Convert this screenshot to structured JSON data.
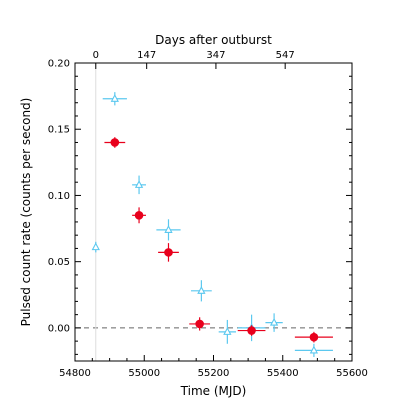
{
  "chart_data": {
    "type": "scatter",
    "title": "",
    "xlabel": "Time (MJD)",
    "ylabel": "Pulsed count rate (counts per second)",
    "top_axis_label": "Days after outburst",
    "xlim": [
      54800,
      55600
    ],
    "ylim": [
      -0.025,
      0.2
    ],
    "x_ticks": [
      54800,
      55000,
      55200,
      55400,
      55600
    ],
    "x_tick_labels": [
      "54800",
      "55000",
      "55200",
      "55400",
      "55600"
    ],
    "y_ticks": [
      0.0,
      0.05,
      0.1,
      0.15,
      0.2
    ],
    "y_tick_labels": [
      "0.00",
      "0.05",
      "0.10",
      "0.15",
      "0.20"
    ],
    "top_ticks": [
      54860,
      55007,
      55207,
      55407
    ],
    "top_tick_labels": [
      "0",
      "147",
      "347",
      "547"
    ],
    "outburst_line_x": 54860,
    "zero_line_y": 0.0,
    "series": [
      {
        "color": "#5bc8ef",
        "marker": "triangle-open",
        "points": [
          {
            "x": 54860,
            "y": 0.061,
            "xerr": 0,
            "yerr": 0.004
          },
          {
            "x": 54915,
            "y": 0.173,
            "xerr": 35,
            "yerr": 0.005
          },
          {
            "x": 54985,
            "y": 0.108,
            "xerr": 20,
            "yerr": 0.007
          },
          {
            "x": 55070,
            "y": 0.074,
            "xerr": 35,
            "yerr": 0.008
          },
          {
            "x": 55165,
            "y": 0.028,
            "xerr": 30,
            "yerr": 0.008
          },
          {
            "x": 55240,
            "y": -0.003,
            "xerr": 25,
            "yerr": 0.009
          },
          {
            "x": 55310,
            "y": 0.0,
            "xerr": 40,
            "yerr": 0.01
          },
          {
            "x": 55375,
            "y": 0.004,
            "xerr": 25,
            "yerr": 0.007
          },
          {
            "x": 55490,
            "y": -0.017,
            "xerr": 55,
            "yerr": 0.005
          }
        ]
      },
      {
        "color": "#e8001c",
        "marker": "circle-filled",
        "points": [
          {
            "x": 54915,
            "y": 0.14,
            "xerr": 30,
            "yerr": 0.004
          },
          {
            "x": 54985,
            "y": 0.085,
            "xerr": 20,
            "yerr": 0.006
          },
          {
            "x": 55070,
            "y": 0.057,
            "xerr": 30,
            "yerr": 0.007
          },
          {
            "x": 55160,
            "y": 0.003,
            "xerr": 30,
            "yerr": 0.005
          },
          {
            "x": 55310,
            "y": -0.002,
            "xerr": 40,
            "yerr": 0.004
          },
          {
            "x": 55490,
            "y": -0.007,
            "xerr": 55,
            "yerr": 0.004
          }
        ]
      }
    ]
  }
}
